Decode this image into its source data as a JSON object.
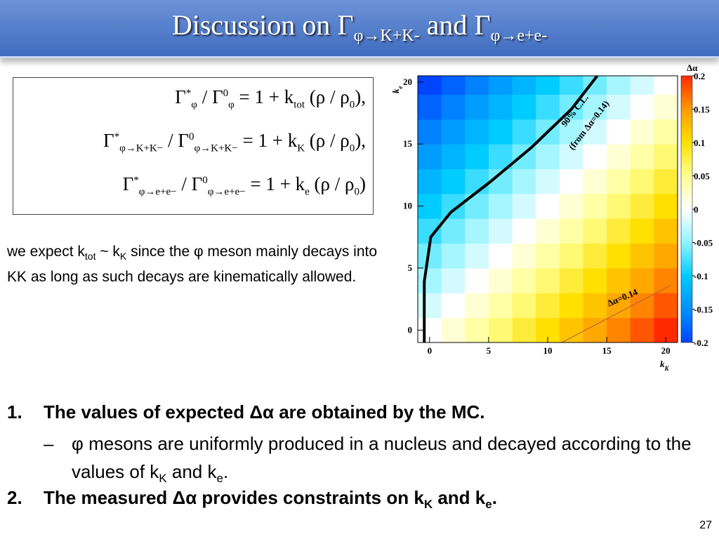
{
  "title": [
    "Discussion on Γ",
    {
      "sub": "φ→K+K-"
    },
    " and Γ",
    {
      "sub": "φ→e+e-"
    }
  ],
  "equations": [
    [
      "Γ",
      {
        "sup": "*"
      },
      {
        "sub": "φ"
      },
      " / Γ",
      {
        "sup": "0"
      },
      {
        "sub": "φ"
      },
      " = 1 + k",
      {
        "sub": "tot"
      },
      " (ρ / ρ",
      {
        "sub": "0"
      },
      "),"
    ],
    [
      "Γ",
      {
        "sup": "*"
      },
      {
        "sub": "φ→K+K−"
      },
      " / Γ",
      {
        "sup": "0"
      },
      {
        "sub": "φ→K+K−"
      },
      " = 1 + k",
      {
        "sub": "K"
      },
      " (ρ / ρ",
      {
        "sub": "0"
      },
      "),"
    ],
    [
      "Γ",
      {
        "sup": "*"
      },
      {
        "sub": "φ→e+e−"
      },
      " / Γ",
      {
        "sup": "0"
      },
      {
        "sub": "φ→e+e−"
      },
      " = 1 + k",
      {
        "sub": "e"
      },
      " (ρ / ρ",
      {
        "sub": "0"
      },
      ")"
    ]
  ],
  "paragraph": [
    "we expect k",
    {
      "sub": "tot"
    },
    " ~ k",
    {
      "sub": "K"
    },
    " since the φ meson mainly decays into KK as long as such decays are kinematically allowed."
  ],
  "bullets": [
    {
      "marker": "1.",
      "text": [
        "The values of expected Δα are obtained by the MC."
      ]
    },
    {
      "marker": "–",
      "text": [
        "φ mesons are uniformly produced in a nucleus and decayed according to the values of k",
        {
          "sub": "K"
        },
        " and k",
        {
          "sub": "e"
        },
        "."
      ]
    },
    {
      "marker": "2.",
      "text": [
        "The measured Δα provides constraints on k",
        {
          "sub": "K"
        },
        " and k",
        {
          "sub": "e"
        },
        "."
      ]
    }
  ],
  "page_number": "27",
  "chart_data": {
    "type": "heatmap",
    "xlabel": [
      "k",
      {
        "sub": "K"
      }
    ],
    "ylabel": [
      "k",
      {
        "sub": "e"
      }
    ],
    "zlabel": "Δα",
    "xlim": [
      -1,
      21
    ],
    "ylim": [
      -1,
      20.5
    ],
    "xticks": [
      0,
      5,
      10,
      15,
      20
    ],
    "yticks": [
      0,
      5,
      10,
      15,
      20
    ],
    "xbins": [
      -1,
      1,
      3,
      5,
      7,
      9,
      11,
      13,
      15,
      17,
      19,
      21
    ],
    "ybins": [
      -1,
      1,
      3,
      5,
      7,
      9,
      11,
      13,
      15,
      17,
      19,
      20.5
    ],
    "z": [
      [
        0,
        0.02,
        0.04,
        0.06,
        0.08,
        0.1,
        0.12,
        0.14,
        0.16,
        0.18,
        0.2
      ],
      [
        -0.02,
        0,
        0.02,
        0.04,
        0.06,
        0.08,
        0.1,
        0.12,
        0.14,
        0.16,
        0.18
      ],
      [
        -0.04,
        -0.02,
        0,
        0.02,
        0.04,
        0.06,
        0.08,
        0.1,
        0.12,
        0.14,
        0.16
      ],
      [
        -0.06,
        -0.04,
        -0.02,
        0,
        0.02,
        0.04,
        0.06,
        0.08,
        0.1,
        0.12,
        0.14
      ],
      [
        -0.08,
        -0.06,
        -0.04,
        -0.02,
        0,
        0.02,
        0.04,
        0.06,
        0.08,
        0.1,
        0.12
      ],
      [
        -0.1,
        -0.08,
        -0.06,
        -0.04,
        -0.02,
        0,
        0.02,
        0.04,
        0.06,
        0.08,
        0.1
      ],
      [
        -0.12,
        -0.1,
        -0.08,
        -0.06,
        -0.04,
        -0.02,
        0,
        0.02,
        0.04,
        0.06,
        0.08
      ],
      [
        -0.14,
        -0.12,
        -0.1,
        -0.08,
        -0.06,
        -0.04,
        -0.02,
        0,
        0.02,
        0.04,
        0.06
      ],
      [
        -0.16,
        -0.14,
        -0.12,
        -0.1,
        -0.08,
        -0.06,
        -0.04,
        -0.02,
        0,
        0.02,
        0.04
      ],
      [
        -0.18,
        -0.16,
        -0.14,
        -0.12,
        -0.1,
        -0.08,
        -0.06,
        -0.04,
        -0.02,
        0,
        0.02
      ],
      [
        -0.2,
        -0.18,
        -0.16,
        -0.14,
        -0.12,
        -0.1,
        -0.08,
        -0.06,
        -0.04,
        -0.02,
        0
      ]
    ],
    "zlim": [
      -0.2,
      0.2
    ],
    "zticks": [
      0.2,
      0.15,
      0.1,
      0.05,
      0,
      -0.05,
      -0.1,
      -0.15,
      -0.2
    ],
    "colors": [
      "#0044ff",
      "#0090ff",
      "#00ccff",
      "#90f4ff",
      "#ffffff",
      "#ffff90",
      "#ffe000",
      "#ff9a00",
      "#ff2a00"
    ],
    "contours": [
      {
        "color": "#000000",
        "width": 4,
        "x": [
          -0.45,
          -0.45,
          0.1,
          1.8,
          5.2,
          8.6,
          12,
          14.2
        ],
        "y": [
          -1,
          3.9,
          7.5,
          9.5,
          12,
          14.7,
          17.8,
          20.5
        ]
      },
      {
        "color": "#b06040",
        "width": 1,
        "x": [
          11.2,
          20.4
        ],
        "y": [
          -1,
          3.6
        ]
      }
    ],
    "annotations": [
      "90% C.L.",
      "(from Δα=0.14)",
      "Δα=0.14"
    ]
  }
}
